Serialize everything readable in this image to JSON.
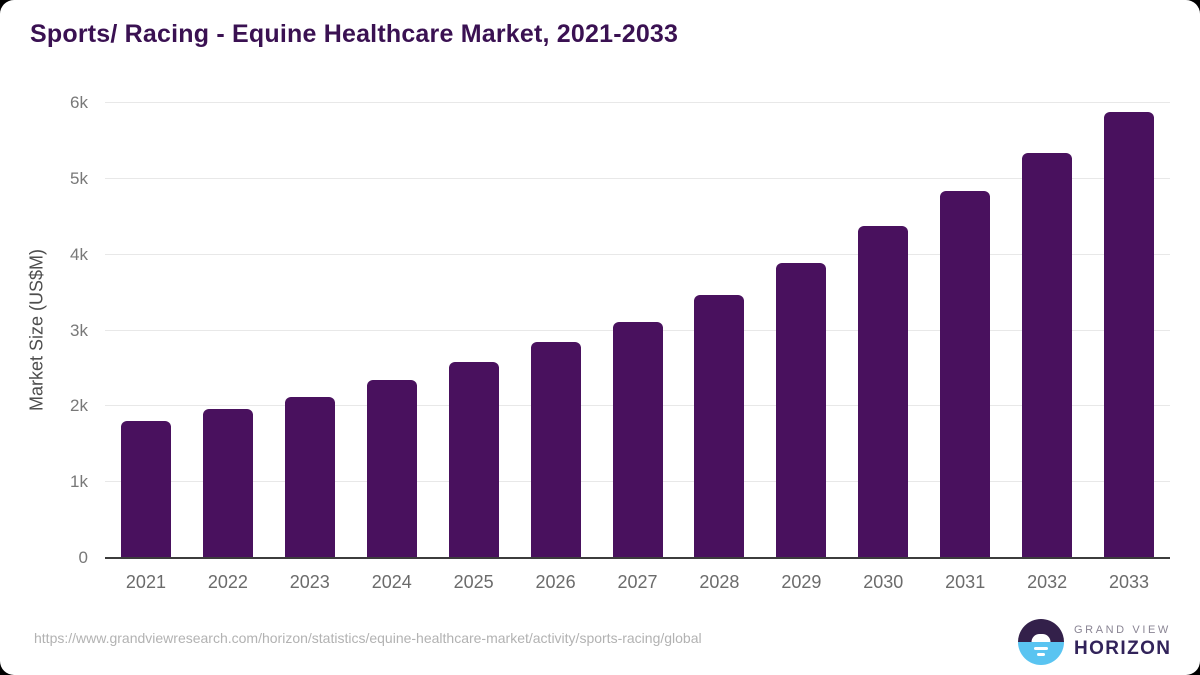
{
  "header": {
    "title": "Sports/ Racing - Equine Healthcare Market, 2021-2033"
  },
  "chart_data": {
    "type": "bar",
    "title": "Sports/ Racing - Equine Healthcare Market, 2021-2033",
    "xlabel": "",
    "ylabel": "Market Size (US$M)",
    "categories": [
      "2021",
      "2022",
      "2023",
      "2024",
      "2025",
      "2026",
      "2027",
      "2028",
      "2029",
      "2030",
      "2031",
      "2032",
      "2033"
    ],
    "values": [
      1800,
      1950,
      2110,
      2330,
      2570,
      2830,
      3100,
      3450,
      3880,
      4360,
      4830,
      5330,
      5870
    ],
    "ylim": [
      0,
      6000
    ],
    "ytick_values": [
      0,
      1000,
      2000,
      3000,
      4000,
      5000,
      6000
    ],
    "ytick_labels": [
      "0",
      "1k",
      "2k",
      "3k",
      "4k",
      "5k",
      "6k"
    ],
    "grid": true,
    "legend": "none",
    "bar_color": "#49115e"
  },
  "colors": {
    "title": "#3a1152",
    "bar": "#49115e",
    "gridline": "#e8e8e8",
    "baseline": "#3c3c3c",
    "ytick_label": "#787878",
    "xtick_label": "#6b6b6b",
    "y_axis_title": "#4d4d4d",
    "source_url": "#b2b2b2",
    "logo_top": "#33204a",
    "logo_bottom": "#5ac4f1",
    "logo_line1": "#8a8594",
    "logo_line2": "#32235a",
    "card_background": "#ffffff",
    "page_background": "#000000"
  },
  "footer": {
    "source_url": "https://www.grandviewresearch.com/horizon/statistics/equine-healthcare-market/activity/sports-racing/global",
    "logo": {
      "line1": "GRAND VIEW",
      "line2": "HORIZON"
    }
  }
}
